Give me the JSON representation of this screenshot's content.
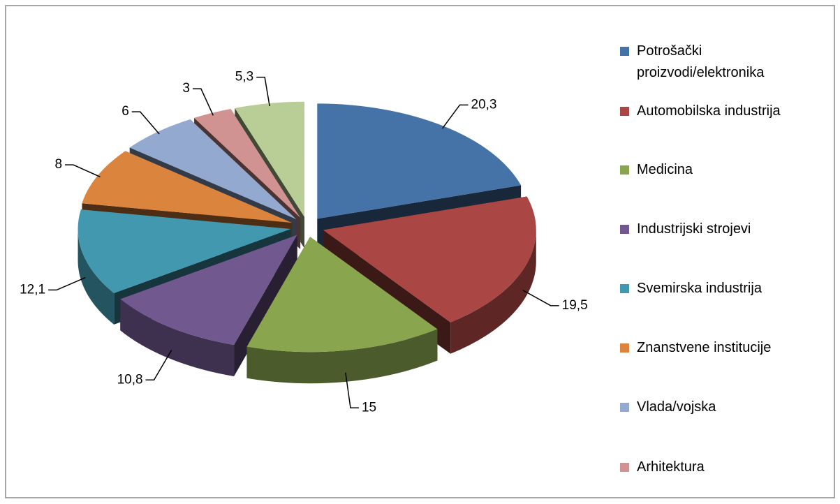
{
  "chart_data": {
    "type": "pie",
    "categories": [
      "Potrošački proizvodi/elektronika",
      "Automobilska industrija",
      "Medicina",
      "Industrijski strojevi",
      "Svemirska industrija",
      "Znanstvene institucije",
      "Vlada/vojska",
      "Arhitektura",
      null
    ],
    "values": [
      20.3,
      19.5,
      15,
      10.8,
      12.1,
      8,
      6,
      3,
      5.3
    ],
    "value_labels": [
      "20,3",
      "19,5",
      "15",
      "10,8",
      "12,1",
      "8",
      "6",
      "3",
      "5,3"
    ],
    "colors": [
      "#4572a7",
      "#aa4643",
      "#89a54e",
      "#71588f",
      "#4198af",
      "#db843d",
      "#93a9cf",
      "#d19392",
      "#b9cd96"
    ],
    "legend": "right"
  }
}
